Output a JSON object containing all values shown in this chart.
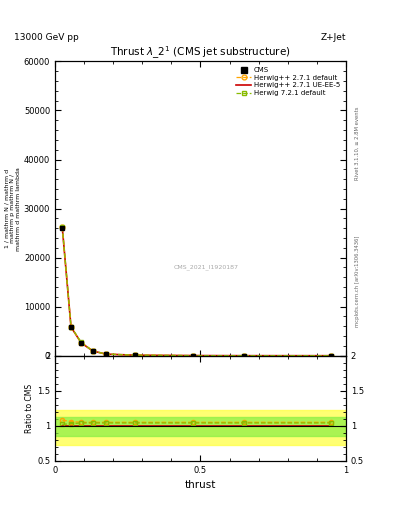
{
  "title": "Thrust $\\lambda\\_2^1$ (CMS jet substructure)",
  "top_label_left": "13000 GeV pp",
  "top_label_right": "Z+Jet",
  "right_label_top": "Rivet 3.1.10, ≥ 2.8M events",
  "right_label_bot": "mcplots.cern.ch [arXiv:1306.3436]",
  "watermark": "CMS_2021_I1920187",
  "xlabel": "thrust",
  "ylabel": "1 / mathrm N / mathrm d mathrm p mathrm{N} / mathrm d mathrm{lambda}",
  "ylim_main": [
    0,
    60000
  ],
  "ylim_ratio": [
    0.5,
    2.0
  ],
  "yticks_main": [
    0,
    10000,
    20000,
    30000,
    40000,
    50000,
    60000
  ],
  "ytick_labels_main": [
    "0",
    "10000",
    "20000",
    "30000",
    "40000",
    "50000",
    "60000"
  ],
  "xlim": [
    0,
    1
  ],
  "thrust_x": [
    0.025,
    0.055,
    0.09,
    0.13,
    0.175,
    0.275,
    0.475,
    0.65,
    0.95
  ],
  "cms_y": [
    26000,
    5800,
    2600,
    950,
    320,
    105,
    22,
    6,
    2
  ],
  "herwig271_default_y": [
    26200,
    5900,
    2650,
    970,
    330,
    110,
    24,
    6.5,
    2
  ],
  "herwig271_ueee5_y": [
    26100,
    5850,
    2620,
    960,
    325,
    107,
    23,
    6.2,
    2
  ],
  "herwig721_default_y": [
    26300,
    5950,
    2700,
    980,
    335,
    112,
    25,
    7.0,
    2
  ],
  "color_cms": "#000000",
  "color_271default": "#FFA500",
  "color_271ueee5": "#CC0000",
  "color_721default": "#88BB00",
  "band_271default_lo": 0.72,
  "band_271default_hi": 1.22,
  "band_721default_lo": 0.85,
  "band_721default_hi": 1.13,
  "ratio_271default": [
    1.08,
    1.06,
    1.05,
    1.05,
    1.05,
    1.05,
    1.05,
    1.05,
    1.05
  ],
  "ratio_271ueee5": [
    1.0,
    1.0,
    1.0,
    1.0,
    1.0,
    1.0,
    1.0,
    1.0,
    1.0
  ],
  "ratio_721default": [
    1.02,
    1.03,
    1.04,
    1.04,
    1.04,
    1.04,
    1.04,
    1.04,
    1.04
  ]
}
